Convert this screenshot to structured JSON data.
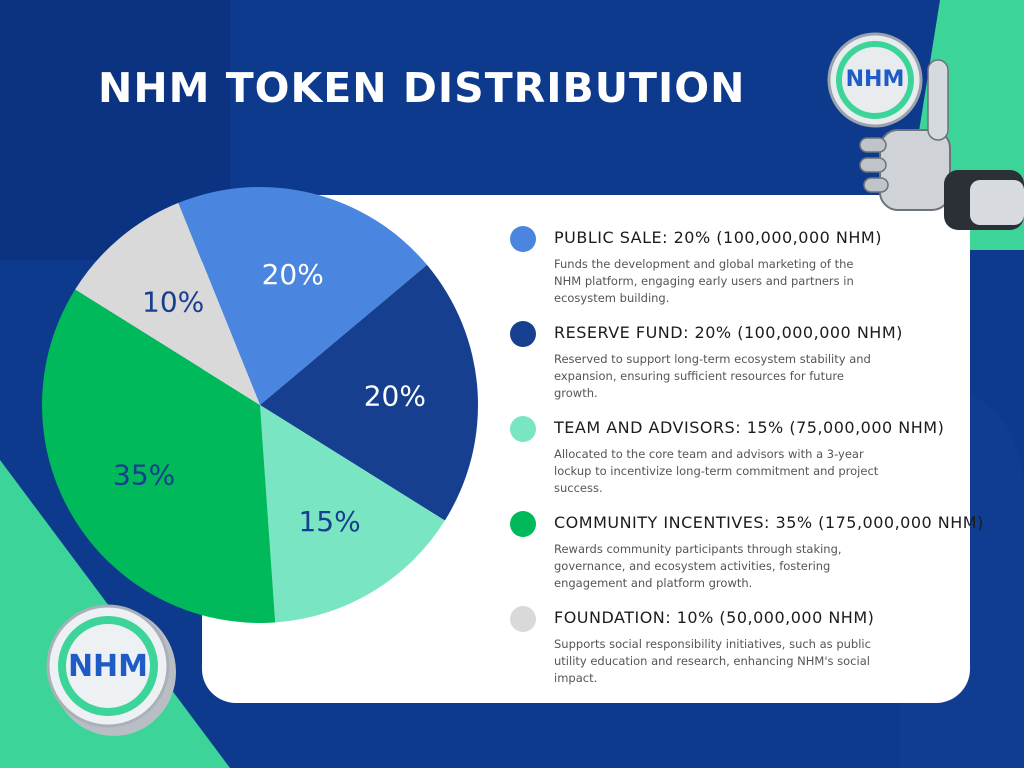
{
  "title": "NHM TOKEN DISTRIBUTION",
  "logo": {
    "text": "NHM",
    "icon": "nhm-coin-logo"
  },
  "colors": {
    "background": "#0d3a8c",
    "accent_green": "#3dd49a",
    "card": "#ffffff"
  },
  "chart_data": {
    "type": "pie",
    "slices": [
      {
        "label": "PUBLIC SALE",
        "value": 20,
        "display": "20%",
        "color": "#4a86e0"
      },
      {
        "label": "RESERVE FUND",
        "value": 20,
        "display": "20%",
        "color": "#173f8f"
      },
      {
        "label": "TEAM AND ADVISORS",
        "value": 15,
        "display": "15%",
        "color": "#7ae5c2"
      },
      {
        "label": "COMMUNITY INCENTIVES",
        "value": 35,
        "display": "35%",
        "color": "#00b95a"
      },
      {
        "label": "FOUNDATION",
        "value": 10,
        "display": "10%",
        "color": "#d9d9d9"
      }
    ]
  },
  "legend": [
    {
      "heading": "PUBLIC SALE: 20% (100,000,000 NHM)",
      "description": "Funds the development and global marketing of the NHM platform, engaging early users and partners in ecosystem building.",
      "color": "#4a86e0"
    },
    {
      "heading": "RESERVE FUND: 20% (100,000,000 NHM)",
      "description": "Reserved to support long-term ecosystem stability and expansion, ensuring sufficient resources for future growth.",
      "color": "#173f8f"
    },
    {
      "heading": "TEAM AND ADVISORS: 15% (75,000,000 NHM)",
      "description": "Allocated to the core team and advisors with a 3-year lockup to incentivize long-term commitment and project success.",
      "color": "#7ae5c2"
    },
    {
      "heading": "COMMUNITY INCENTIVES: 35% (175,000,000 NHM)",
      "description": "Rewards community participants through staking, governance, and ecosystem activities, fostering engagement and platform growth.",
      "color": "#00b95a"
    },
    {
      "heading": "FOUNDATION: 10% (50,000,000 NHM)",
      "description": "Supports social responsibility initiatives, such as public utility education and research, enhancing NHM's social impact.",
      "color": "#d9d9d9"
    }
  ]
}
